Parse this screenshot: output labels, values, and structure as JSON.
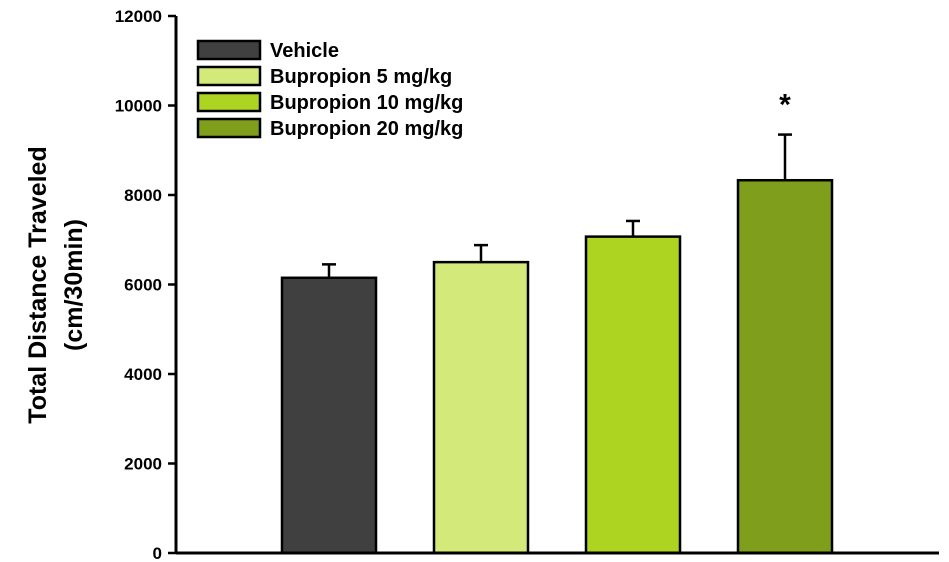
{
  "chart_data": {
    "type": "bar",
    "categories": [
      "Vehicle",
      "Bupropion 5 mg/kg",
      "Bupropion 10 mg/kg",
      "Bupropion 20 mg/kg"
    ],
    "values": [
      6150,
      6500,
      7070,
      8330
    ],
    "errors": [
      300,
      380,
      350,
      1020
    ],
    "colors": [
      "#404040",
      "#d3e97a",
      "#add420",
      "#7e9e1c"
    ],
    "ylabel": "Total Distance Traveled",
    "ylabel_line2": "(cm/30min)",
    "ylim": [
      0,
      12000
    ],
    "yticks": [
      "0",
      "2000",
      "4000",
      "6000",
      "8000",
      "10000",
      "12000"
    ],
    "grid": false,
    "legend": {
      "position": "top-left"
    },
    "annotations": [
      {
        "category": "Bupropion 20 mg/kg",
        "text": "*"
      }
    ]
  }
}
